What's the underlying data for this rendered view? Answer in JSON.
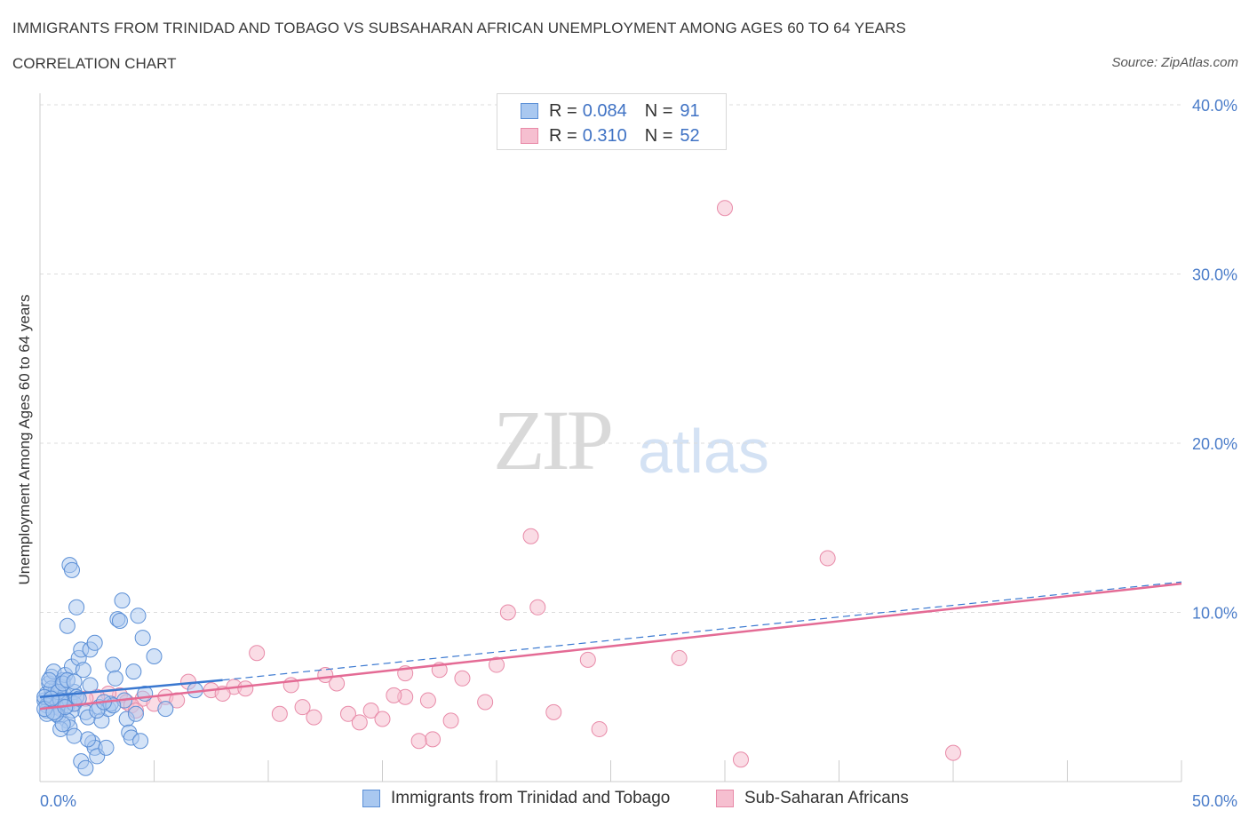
{
  "header": {
    "title": "IMMIGRANTS FROM TRINIDAD AND TOBAGO VS SUBSAHARAN AFRICAN UNEMPLOYMENT AMONG AGES 60 TO 64 YEARS",
    "subtitle": "CORRELATION CHART",
    "source": "Source: ZipAtlas.com"
  },
  "watermark": {
    "zip": "ZIP",
    "atlas": "atlas"
  },
  "legend": {
    "r_label": "R =",
    "n_label": "N =",
    "series1": {
      "r": "0.084",
      "n": "91"
    },
    "series2": {
      "r": "0.310",
      "n": "52"
    }
  },
  "colors": {
    "series1_fill": "#a9c8f0",
    "series1_stroke": "#5b8fd6",
    "series1_line": "#3a78d0",
    "series2_fill": "#f6bfd0",
    "series2_stroke": "#e88aa8",
    "series2_line": "#e46b95",
    "grid": "#dcdcdc",
    "axis": "#cccccc"
  },
  "chart_data": {
    "type": "scatter",
    "title": "IMMIGRANTS FROM TRINIDAD AND TOBAGO VS SUBSAHARAN AFRICAN UNEMPLOYMENT AMONG AGES 60 TO 64 YEARS",
    "xlabel": "",
    "ylabel": "Unemployment Among Ages 60 to 64 years",
    "xlim": [
      0,
      50
    ],
    "ylim": [
      0,
      40
    ],
    "x_tick_labels": [
      "0.0%",
      "50.0%"
    ],
    "y_ticks": [
      10,
      20,
      30,
      40
    ],
    "y_tick_labels": [
      "10.0%",
      "20.0%",
      "30.0%",
      "40.0%"
    ],
    "grid": true,
    "legend_position": "top-center",
    "series": [
      {
        "name": "Immigrants from Trinidad and Tobago",
        "R": 0.084,
        "N": 91,
        "trend": {
          "x": [
            0,
            8
          ],
          "y": [
            5.0,
            6.0
          ],
          "dashed_extension_to": [
            50,
            11.8
          ]
        },
        "points": [
          [
            0.2,
            4.8
          ],
          [
            0.3,
            5.2
          ],
          [
            0.4,
            4.6
          ],
          [
            0.5,
            5.0
          ],
          [
            0.6,
            4.4
          ],
          [
            0.3,
            4.2
          ],
          [
            0.7,
            5.5
          ],
          [
            0.8,
            4.9
          ],
          [
            0.9,
            4.3
          ],
          [
            0.4,
            5.8
          ],
          [
            0.5,
            6.2
          ],
          [
            0.6,
            6.5
          ],
          [
            1.0,
            4.7
          ],
          [
            1.1,
            5.1
          ],
          [
            1.2,
            4.5
          ],
          [
            0.8,
            3.9
          ],
          [
            0.9,
            5.6
          ],
          [
            1.3,
            4.8
          ],
          [
            1.4,
            4.2
          ],
          [
            1.5,
            5.3
          ],
          [
            1.0,
            6.0
          ],
          [
            1.1,
            6.3
          ],
          [
            1.2,
            3.6
          ],
          [
            1.3,
            3.2
          ],
          [
            1.4,
            6.8
          ],
          [
            1.5,
            4.6
          ],
          [
            1.6,
            5.0
          ],
          [
            1.7,
            7.3
          ],
          [
            1.8,
            7.8
          ],
          [
            1.9,
            6.6
          ],
          [
            2.0,
            4.1
          ],
          [
            2.1,
            3.8
          ],
          [
            2.2,
            5.7
          ],
          [
            2.3,
            2.3
          ],
          [
            2.4,
            2.0
          ],
          [
            2.5,
            1.5
          ],
          [
            2.6,
            4.4
          ],
          [
            2.7,
            3.6
          ],
          [
            1.2,
            9.2
          ],
          [
            1.6,
            10.3
          ],
          [
            1.3,
            12.8
          ],
          [
            1.4,
            12.5
          ],
          [
            2.2,
            7.8
          ],
          [
            2.4,
            8.2
          ],
          [
            3.0,
            4.3
          ],
          [
            3.1,
            4.6
          ],
          [
            3.2,
            6.9
          ],
          [
            3.3,
            6.1
          ],
          [
            3.4,
            9.6
          ],
          [
            3.5,
            9.5
          ],
          [
            3.6,
            10.7
          ],
          [
            3.7,
            4.8
          ],
          [
            3.8,
            3.7
          ],
          [
            3.9,
            2.9
          ],
          [
            4.0,
            2.6
          ],
          [
            4.1,
            6.5
          ],
          [
            4.2,
            4.0
          ],
          [
            4.3,
            9.8
          ],
          [
            4.4,
            2.4
          ],
          [
            4.5,
            8.5
          ],
          [
            4.6,
            5.2
          ],
          [
            5.0,
            7.4
          ],
          [
            5.5,
            4.3
          ],
          [
            6.8,
            5.4
          ],
          [
            1.8,
            1.2
          ],
          [
            2.0,
            0.8
          ],
          [
            2.1,
            2.5
          ],
          [
            2.9,
            2.0
          ],
          [
            1.5,
            2.7
          ],
          [
            0.9,
            3.1
          ],
          [
            1.0,
            3.4
          ],
          [
            0.7,
            4.0
          ],
          [
            0.6,
            4.8
          ],
          [
            0.5,
            5.5
          ],
          [
            0.4,
            6.0
          ],
          [
            0.3,
            4.5
          ],
          [
            0.2,
            5.0
          ],
          [
            0.3,
            4.0
          ],
          [
            0.2,
            4.3
          ],
          [
            0.6,
            4.1
          ],
          [
            0.8,
            5.3
          ],
          [
            1.0,
            5.8
          ],
          [
            1.2,
            6.0
          ],
          [
            1.5,
            5.9
          ],
          [
            2.5,
            4.2
          ],
          [
            3.2,
            4.5
          ],
          [
            0.9,
            4.8
          ],
          [
            1.1,
            4.4
          ],
          [
            1.7,
            4.9
          ],
          [
            2.8,
            4.7
          ],
          [
            0.5,
            4.9
          ]
        ]
      },
      {
        "name": "Sub-Saharan Africans",
        "R": 0.31,
        "N": 52,
        "trend": {
          "x": [
            0,
            50
          ],
          "y": [
            4.3,
            11.7
          ]
        },
        "points": [
          [
            30.0,
            33.9
          ],
          [
            21.5,
            14.5
          ],
          [
            34.5,
            13.2
          ],
          [
            20.5,
            10.0
          ],
          [
            21.8,
            10.3
          ],
          [
            9.5,
            7.6
          ],
          [
            16.0,
            6.4
          ],
          [
            20.0,
            6.9
          ],
          [
            24.0,
            7.2
          ],
          [
            28.0,
            7.3
          ],
          [
            18.5,
            6.1
          ],
          [
            17.5,
            6.6
          ],
          [
            12.5,
            6.3
          ],
          [
            13.0,
            5.8
          ],
          [
            11.0,
            5.7
          ],
          [
            8.5,
            5.6
          ],
          [
            6.5,
            5.9
          ],
          [
            7.5,
            5.4
          ],
          [
            8.0,
            5.2
          ],
          [
            9.0,
            5.5
          ],
          [
            4.5,
            4.9
          ],
          [
            5.0,
            4.6
          ],
          [
            5.5,
            5.0
          ],
          [
            6.0,
            4.8
          ],
          [
            3.5,
            5.1
          ],
          [
            3.8,
            4.7
          ],
          [
            4.0,
            4.5
          ],
          [
            3.0,
            5.2
          ],
          [
            2.5,
            5.0
          ],
          [
            2.0,
            4.9
          ],
          [
            1.5,
            4.6
          ],
          [
            1.0,
            4.8
          ],
          [
            0.8,
            4.4
          ],
          [
            16.0,
            5.0
          ],
          [
            17.0,
            4.8
          ],
          [
            15.5,
            5.1
          ],
          [
            19.5,
            4.7
          ],
          [
            14.5,
            4.2
          ],
          [
            15.0,
            3.7
          ],
          [
            13.5,
            4.0
          ],
          [
            14.0,
            3.5
          ],
          [
            12.0,
            3.8
          ],
          [
            11.5,
            4.4
          ],
          [
            10.5,
            4.0
          ],
          [
            18.0,
            3.6
          ],
          [
            17.2,
            2.5
          ],
          [
            16.6,
            2.4
          ],
          [
            24.5,
            3.1
          ],
          [
            22.5,
            4.1
          ],
          [
            30.7,
            1.3
          ],
          [
            40.0,
            1.7
          ],
          [
            4.2,
            4.2
          ]
        ]
      }
    ]
  }
}
